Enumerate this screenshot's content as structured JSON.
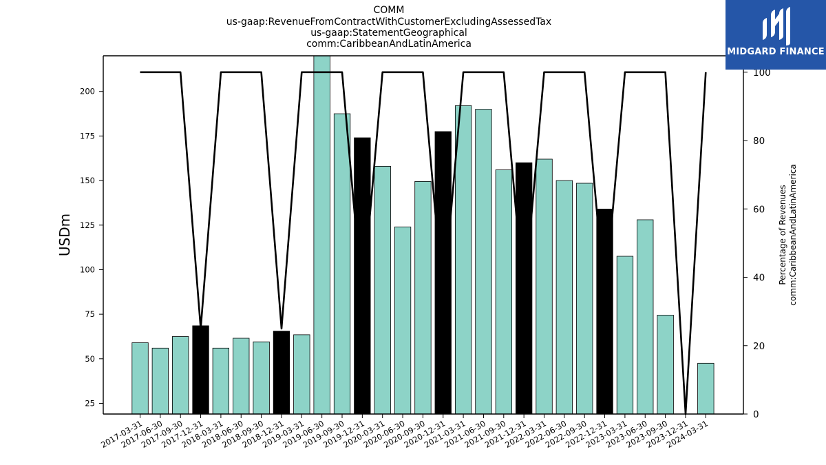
{
  "header": {
    "title_lines": [
      "COMM",
      "us-gaap:RevenueFromContractWithCustomerExcludingAssessedTax",
      "us-gaap:StatementGeographical",
      "comm:CaribbeanAndLatinAmerica"
    ]
  },
  "logo": {
    "text": "MIDGARD FINANCE",
    "background": "#2556a8",
    "icon": "midgard-logo-icon"
  },
  "chart_data": {
    "type": "bar",
    "ylabel_left": "USDm",
    "ylabel_right_lines": [
      "Percentage of Revenues",
      "comm:CaribbeanAndLatinAmerica"
    ],
    "ylim_left": [
      19,
      220
    ],
    "ylim_right": [
      0,
      104.8
    ],
    "yticks_left": [
      25,
      50,
      75,
      100,
      125,
      150,
      175,
      200
    ],
    "yticks_right": [
      0,
      20,
      40,
      60,
      80,
      100
    ],
    "bar_color": "#8dd3c7",
    "q4_bar_color": "#000000",
    "line_color": "#000000",
    "categories": [
      "2017-03-31",
      "2017-06-30",
      "2017-09-30",
      "2017-12-31",
      "2018-03-31",
      "2018-06-30",
      "2018-09-30",
      "2018-12-31",
      "2019-03-31",
      "2019-06-30",
      "2019-09-30",
      "2019-12-31",
      "2020-03-31",
      "2020-06-30",
      "2020-09-30",
      "2020-12-31",
      "2021-03-31",
      "2021-06-30",
      "2021-09-30",
      "2021-12-31",
      "2022-03-31",
      "2022-06-30",
      "2022-09-30",
      "2022-12-31",
      "2023-03-31",
      "2023-06-30",
      "2023-09-30",
      "2023-12-31",
      "2024-03-31"
    ],
    "values": [
      59,
      56,
      62.5,
      68.5,
      56,
      61.5,
      59.5,
      65.5,
      63.5,
      222,
      187.5,
      174,
      158,
      124,
      149.5,
      177.5,
      192,
      190,
      156,
      160,
      162,
      150,
      148.5,
      134,
      107.5,
      128,
      74.5,
      null,
      47.5
    ],
    "highlight": [
      false,
      false,
      false,
      true,
      false,
      false,
      false,
      true,
      false,
      false,
      false,
      true,
      false,
      false,
      false,
      true,
      false,
      false,
      false,
      true,
      false,
      false,
      false,
      true,
      false,
      false,
      false,
      true,
      false
    ],
    "percentage_series": [
      100,
      100,
      100,
      25,
      100,
      100,
      100,
      25,
      100,
      100,
      100,
      33,
      100,
      100,
      100,
      33,
      100,
      100,
      100,
      33,
      100,
      100,
      100,
      33,
      100,
      100,
      100,
      0,
      100
    ]
  }
}
